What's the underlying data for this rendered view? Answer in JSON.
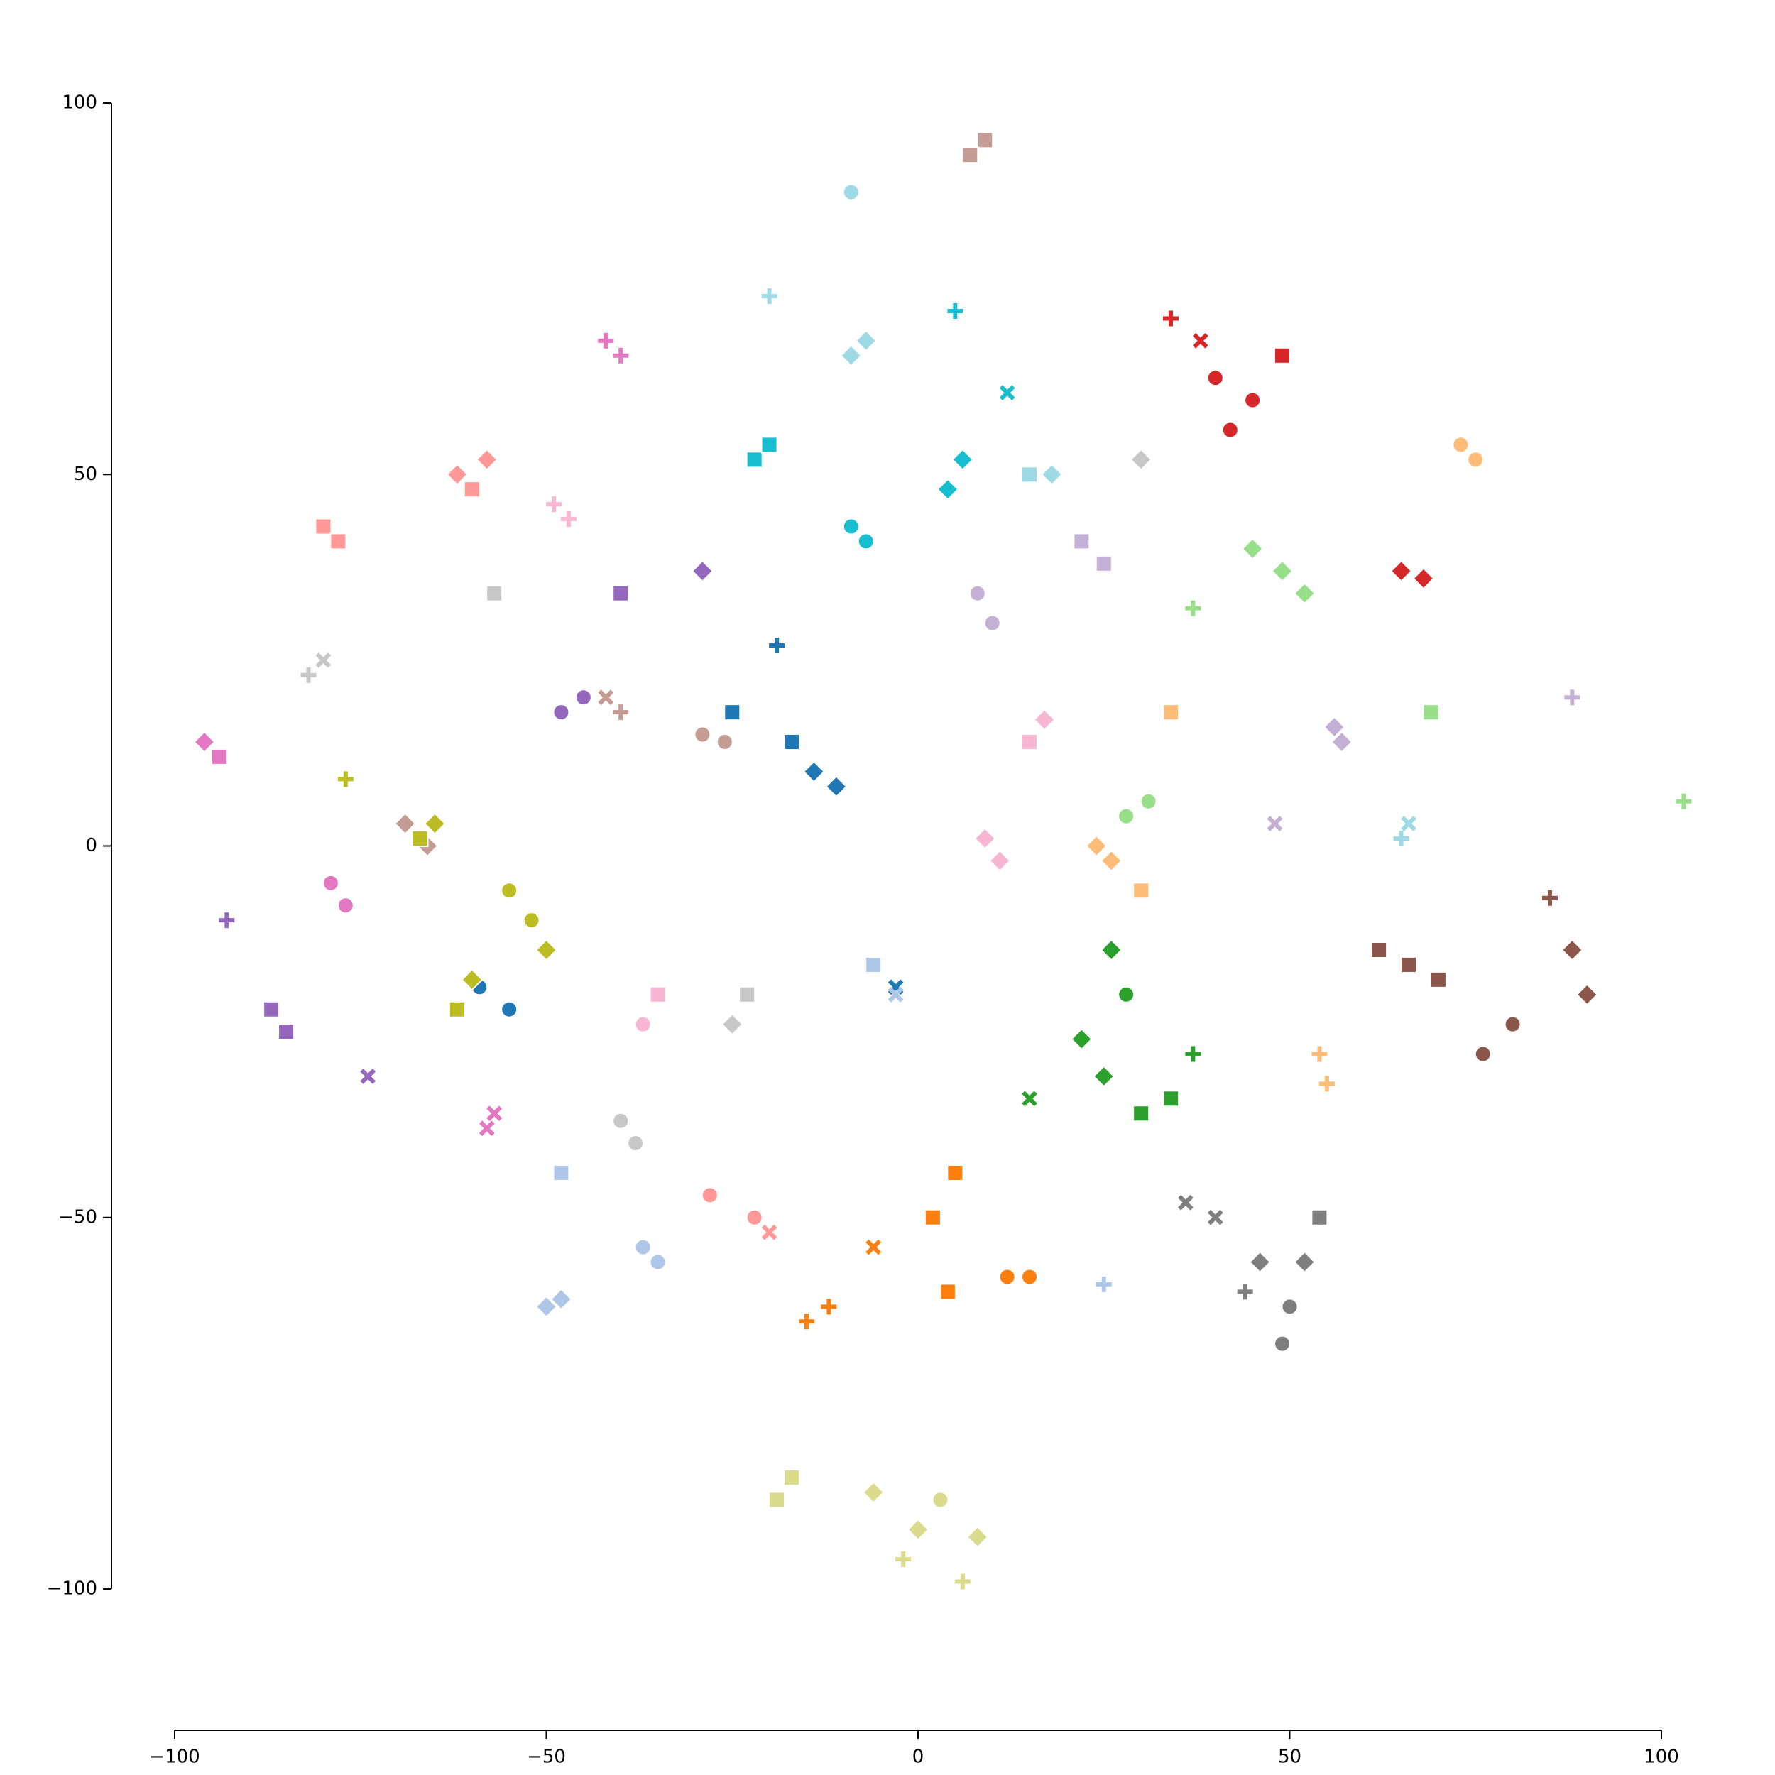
{
  "chart_data": {
    "type": "scatter",
    "xlim": [
      -100,
      100
    ],
    "ylim": [
      -100,
      100
    ],
    "xticks": [
      {
        "value": -100,
        "label": "−100"
      },
      {
        "value": -50,
        "label": "−50"
      },
      0,
      50,
      100
    ],
    "yticks": [
      {
        "value": -100,
        "label": "−100"
      },
      {
        "value": -50,
        "label": "−50"
      },
      0,
      50,
      100
    ],
    "series": [
      {
        "color": "#8c564b",
        "x": [
          66,
          70,
          88,
          85,
          76,
          90,
          62,
          80
        ],
        "y": [
          -16,
          -18,
          -14,
          -7,
          -28,
          -20,
          -14,
          -24
        ],
        "markers": [
          "square",
          "square",
          "diamond",
          "plus",
          "circle",
          "diamond",
          "square",
          "circle"
        ]
      },
      {
        "color": "#7f7f7f",
        "x": [
          46,
          40,
          49,
          54,
          44,
          50,
          36,
          52
        ],
        "y": [
          -56,
          -50,
          -67,
          -50,
          -60,
          -62,
          -48,
          -56
        ],
        "markers": [
          "diamond",
          "x",
          "circle",
          "square",
          "plus",
          "circle",
          "x",
          "diamond"
        ]
      },
      {
        "color": "#dbdb8d",
        "x": [
          0,
          -17,
          6,
          -6,
          3,
          -2,
          8,
          -19
        ],
        "y": [
          -92,
          -85,
          -99,
          -87,
          -88,
          -96,
          -93,
          -88
        ],
        "markers": [
          "diamond",
          "square",
          "plus",
          "diamond",
          "circle",
          "plus",
          "diamond",
          "square"
        ]
      },
      {
        "color": "#ff7f0e",
        "x": [
          2,
          -15,
          12,
          -6,
          5,
          -12,
          15,
          4
        ],
        "y": [
          -50,
          -64,
          -58,
          -54,
          -44,
          -62,
          -58,
          -60
        ],
        "markers": [
          "square",
          "plus",
          "circle",
          "x",
          "square",
          "plus",
          "circle",
          "square"
        ]
      },
      {
        "color": "#2ca02c",
        "x": [
          25,
          28,
          37,
          15,
          30,
          22,
          34,
          26
        ],
        "y": [
          -31,
          -20,
          -28,
          -34,
          -36,
          -26,
          -34,
          -14
        ],
        "markers": [
          "diamond",
          "circle",
          "plus",
          "x",
          "square",
          "diamond",
          "square",
          "diamond"
        ]
      },
      {
        "color": "#d62728",
        "x": [
          40,
          65,
          34,
          49,
          42,
          68,
          38,
          45
        ],
        "y": [
          63,
          37,
          71,
          66,
          56,
          36,
          68,
          60
        ],
        "markers": [
          "circle",
          "diamond",
          "plus",
          "square",
          "circle",
          "diamond",
          "x",
          "circle"
        ]
      },
      {
        "color": "#98df8a",
        "x": [
          49,
          31,
          69,
          103,
          37,
          45,
          28,
          52
        ],
        "y": [
          37,
          6,
          18,
          6,
          32,
          40,
          4,
          34
        ],
        "markers": [
          "diamond",
          "circle",
          "square",
          "plus",
          "plus",
          "diamond",
          "circle",
          "diamond"
        ]
      },
      {
        "color": "#17becf",
        "x": [
          -22,
          -9,
          6,
          5,
          12,
          -20,
          -7,
          4
        ],
        "y": [
          52,
          43,
          52,
          72,
          61,
          54,
          41,
          48
        ],
        "markers": [
          "square",
          "circle",
          "diamond",
          "plus",
          "x",
          "square",
          "circle",
          "diamond"
        ]
      },
      {
        "color": "#9edae5",
        "x": [
          -9,
          -20,
          -9,
          15,
          65,
          18,
          -7,
          66
        ],
        "y": [
          88,
          74,
          66,
          50,
          1,
          50,
          68,
          3
        ],
        "markers": [
          "circle",
          "plus",
          "diamond",
          "square",
          "plus",
          "diamond",
          "diamond",
          "x"
        ]
      },
      {
        "color": "#ffbb78",
        "x": [
          73,
          26,
          54,
          34,
          24,
          30,
          55,
          75
        ],
        "y": [
          54,
          -2,
          -28,
          18,
          0,
          -6,
          -32,
          52
        ],
        "markers": [
          "circle",
          "diamond",
          "plus",
          "square",
          "diamond",
          "square",
          "plus",
          "circle"
        ]
      },
      {
        "color": "#c5b0d5",
        "x": [
          8,
          22,
          88,
          48,
          57,
          10,
          25,
          56
        ],
        "y": [
          34,
          41,
          20,
          3,
          14,
          30,
          38,
          16
        ],
        "markers": [
          "circle",
          "square",
          "plus",
          "x",
          "diamond",
          "circle",
          "square",
          "diamond"
        ]
      },
      {
        "color": "#c49c94",
        "x": [
          9,
          -29,
          -40,
          -69,
          -26,
          7,
          -66,
          -42
        ],
        "y": [
          95,
          15,
          18,
          3,
          14,
          93,
          0,
          20
        ],
        "markers": [
          "square",
          "circle",
          "plus",
          "diamond",
          "circle",
          "square",
          "diamond",
          "x"
        ]
      },
      {
        "color": "#1f77b4",
        "x": [
          -14,
          -25,
          -59,
          -3,
          -19,
          -11,
          -55,
          -17
        ],
        "y": [
          10,
          18,
          -19,
          -19,
          27,
          8,
          -22,
          14
        ],
        "markers": [
          "diamond",
          "square",
          "circle",
          "x",
          "plus",
          "diamond",
          "circle",
          "square"
        ]
      },
      {
        "color": "#aec7e8",
        "x": [
          -6,
          -37,
          -48,
          25,
          -48,
          -3,
          -35,
          -50
        ],
        "y": [
          -16,
          -54,
          -61,
          -59,
          -44,
          -20,
          -56,
          -62
        ],
        "markers": [
          "square",
          "circle",
          "diamond",
          "plus",
          "square",
          "x",
          "circle",
          "diamond"
        ]
      },
      {
        "color": "#9467bd",
        "x": [
          -29,
          -48,
          -85,
          -93,
          -40,
          -74,
          -45,
          -87
        ],
        "y": [
          37,
          18,
          -25,
          -10,
          34,
          -31,
          20,
          -22
        ],
        "markers": [
          "diamond",
          "circle",
          "square",
          "plus",
          "square",
          "x",
          "circle",
          "square"
        ]
      },
      {
        "color": "#e377c2",
        "x": [
          -96,
          -42,
          -79,
          -57,
          -94,
          -40,
          -77,
          -58
        ],
        "y": [
          14,
          68,
          -5,
          -36,
          12,
          66,
          -8,
          -38
        ],
        "markers": [
          "diamond",
          "plus",
          "circle",
          "x",
          "square",
          "plus",
          "circle",
          "x"
        ]
      },
      {
        "color": "#f7b6d2",
        "x": [
          -35,
          9,
          17,
          -49,
          -37,
          11,
          15,
          -47
        ],
        "y": [
          -20,
          1,
          17,
          46,
          -24,
          -2,
          14,
          44
        ],
        "markers": [
          "square",
          "diamond",
          "diamond",
          "plus",
          "circle",
          "diamond",
          "square",
          "plus"
        ]
      },
      {
        "color": "#ff9896",
        "x": [
          -62,
          -80,
          -22,
          -28,
          -60,
          -78,
          -20,
          -58
        ],
        "y": [
          50,
          43,
          -50,
          -47,
          48,
          41,
          -52,
          52
        ],
        "markers": [
          "diamond",
          "square",
          "circle",
          "circle",
          "square",
          "square",
          "x",
          "diamond"
        ]
      },
      {
        "color": "#bcbd22",
        "x": [
          -52,
          -65,
          -77,
          -62,
          -50,
          -67,
          -55,
          -60
        ],
        "y": [
          -10,
          3,
          9,
          -22,
          -14,
          1,
          -6,
          -18
        ],
        "markers": [
          "circle",
          "diamond",
          "plus",
          "square",
          "diamond",
          "square",
          "circle",
          "diamond"
        ]
      },
      {
        "color": "#c7c7c7",
        "x": [
          -82,
          -23,
          -40,
          -57,
          -80,
          -25,
          -38,
          30
        ],
        "y": [
          23,
          -20,
          -37,
          34,
          25,
          -24,
          -40,
          52
        ],
        "markers": [
          "plus",
          "square",
          "circle",
          "square",
          "x",
          "diamond",
          "circle",
          "diamond"
        ]
      }
    ]
  }
}
